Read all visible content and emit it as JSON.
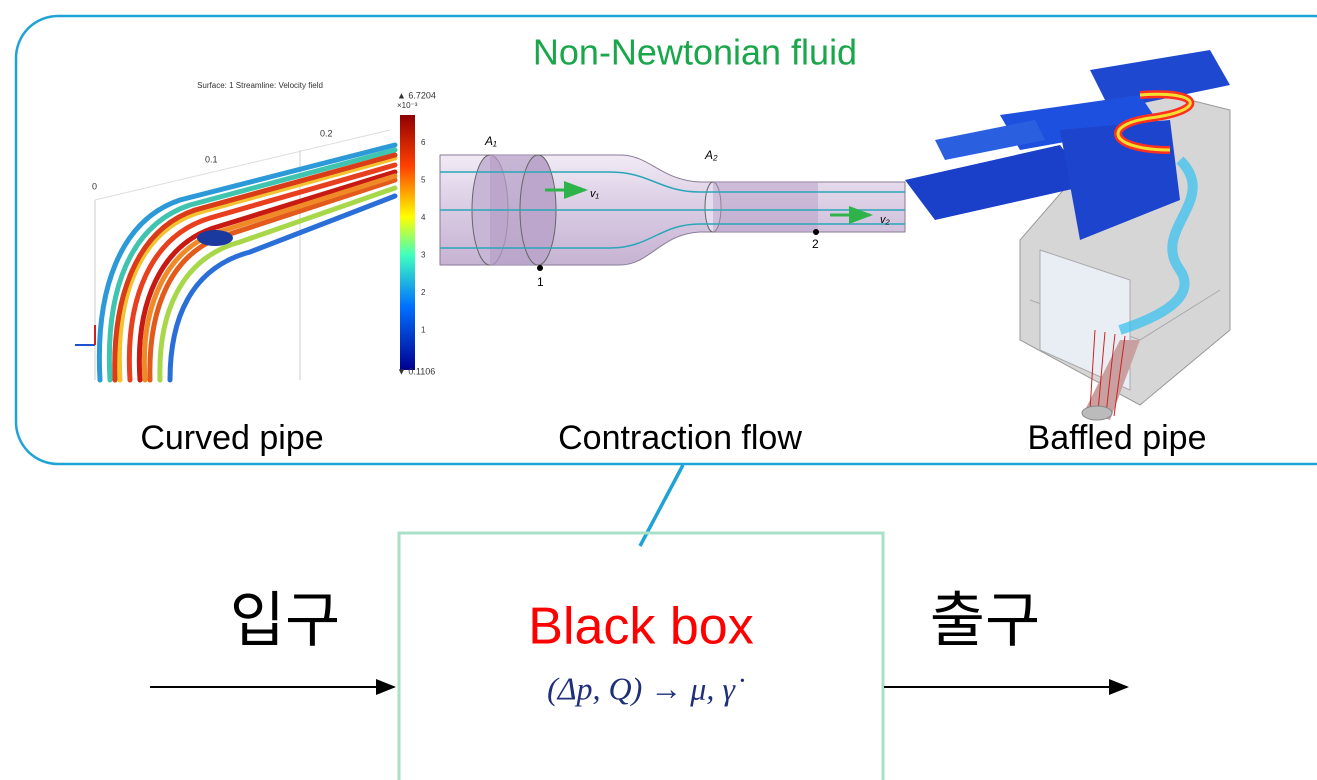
{
  "panel": {
    "title": "Non-Newtonian fluid",
    "items": [
      {
        "label": "Curved pipe"
      },
      {
        "label": "Contraction flow"
      },
      {
        "label": "Baffled pipe"
      }
    ]
  },
  "curved_pipe_plot": {
    "title": "Surface: 1  Streamline: Velocity field",
    "colorbar_max": "▲ 6.7204",
    "colorbar_exp": "×10⁻³",
    "colorbar_min": "▼ 0.1106",
    "colorbar_ticks": [
      "6",
      "5",
      "4",
      "3",
      "2",
      "1"
    ],
    "axis_ticks": [
      "0.2",
      "0.1",
      "0"
    ]
  },
  "contraction_diagram": {
    "a1": "A₁",
    "a2": "A₂",
    "v1": "v₁",
    "v2": "v₂",
    "p1": "1",
    "p2": "2"
  },
  "black_box": {
    "title": "Black box",
    "formula": "(Δp, Q) → μ, γ̇"
  },
  "input": "입구",
  "output": "출구"
}
